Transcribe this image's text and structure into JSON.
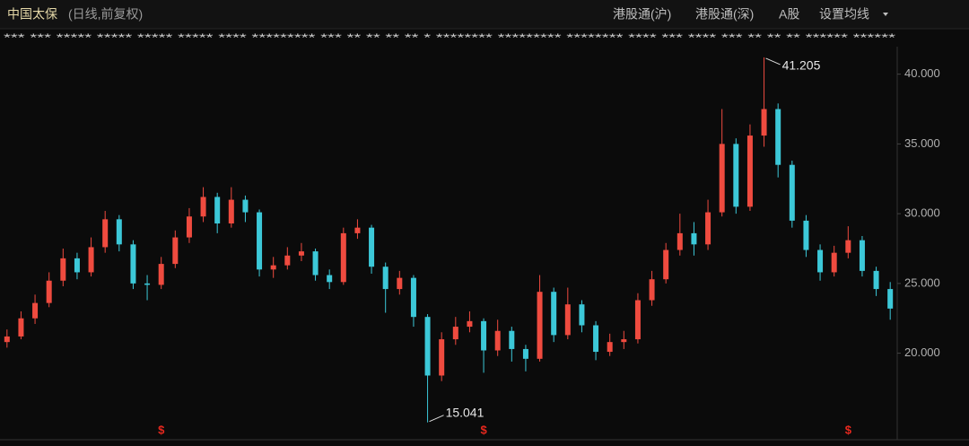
{
  "chart_data": {
    "type": "candlestick",
    "title": "中国太保",
    "subtitle": "(日线,前复权)",
    "tabs": [
      "港股通(沪)",
      "港股通(深)",
      "A股",
      "设置均线"
    ],
    "legend_masked": "*** *** ***** ***** ***** ***** **** ********* *** ** ** ** ** * ******** ********* ******** **** *** **** *** ** ** ** ****** ******",
    "open": [
      20.8,
      21.2,
      22.5,
      23.6,
      25.2,
      26.8,
      25.8,
      27.6,
      29.6,
      27.8,
      25.0,
      24.9,
      26.4,
      28.3,
      29.8,
      31.2,
      29.3,
      31.0,
      30.1,
      26.0,
      26.3,
      27.0,
      27.3,
      25.6,
      25.1,
      28.6,
      29.0,
      26.2,
      24.6,
      25.4,
      22.6,
      18.4,
      21.0,
      21.9,
      22.3,
      20.2,
      21.6,
      20.3,
      19.6,
      24.4,
      21.3,
      23.5,
      22.0,
      20.1,
      20.8,
      21.0,
      23.8,
      25.3,
      27.4,
      28.6,
      27.8,
      30.1,
      35.0,
      30.5,
      35.6,
      37.5,
      33.5,
      29.5,
      27.4,
      25.8,
      27.2,
      28.1,
      25.9,
      24.6
    ],
    "close": [
      21.2,
      22.5,
      23.6,
      25.2,
      26.8,
      25.8,
      27.6,
      29.6,
      27.8,
      25.0,
      24.9,
      26.4,
      28.3,
      29.8,
      31.2,
      29.3,
      31.0,
      30.1,
      26.0,
      26.3,
      27.0,
      27.3,
      25.6,
      25.1,
      28.6,
      29.0,
      26.2,
      24.6,
      25.4,
      22.6,
      18.4,
      21.0,
      21.9,
      22.3,
      20.2,
      21.6,
      20.3,
      19.6,
      24.4,
      21.3,
      23.5,
      22.0,
      20.1,
      20.8,
      21.0,
      23.8,
      25.3,
      27.4,
      28.6,
      27.8,
      30.1,
      35.0,
      30.5,
      35.6,
      37.5,
      33.5,
      29.5,
      27.4,
      25.8,
      27.2,
      28.1,
      25.9,
      24.6,
      23.2
    ],
    "high": [
      21.7,
      23.0,
      24.2,
      25.8,
      27.5,
      27.2,
      28.3,
      30.2,
      29.9,
      28.1,
      25.6,
      26.9,
      28.8,
      30.4,
      31.9,
      31.5,
      31.9,
      31.3,
      30.3,
      26.9,
      27.6,
      27.9,
      27.5,
      26.0,
      29.0,
      29.6,
      29.2,
      26.5,
      25.9,
      25.6,
      22.8,
      21.5,
      22.6,
      23.0,
      22.5,
      22.4,
      21.9,
      20.6,
      25.6,
      24.7,
      24.7,
      23.8,
      22.3,
      21.4,
      21.6,
      24.3,
      25.9,
      27.9,
      30.0,
      29.4,
      31.0,
      37.5,
      35.4,
      36.4,
      41.205,
      37.9,
      33.8,
      29.9,
      27.8,
      27.7,
      29.1,
      28.4,
      26.2,
      25.1
    ],
    "low": [
      20.4,
      21.0,
      22.1,
      23.3,
      24.8,
      25.3,
      25.5,
      27.2,
      27.3,
      24.6,
      23.8,
      24.6,
      26.1,
      27.9,
      29.4,
      28.6,
      29.0,
      29.4,
      25.5,
      25.4,
      26.0,
      26.6,
      25.2,
      24.6,
      24.9,
      28.2,
      25.7,
      22.9,
      24.2,
      21.9,
      15.041,
      18.0,
      20.6,
      21.5,
      18.6,
      19.8,
      19.4,
      18.7,
      19.4,
      20.8,
      21.0,
      21.5,
      19.5,
      19.8,
      20.3,
      20.7,
      23.4,
      25.0,
      27.0,
      27.0,
      27.4,
      29.8,
      30.0,
      30.2,
      34.8,
      32.6,
      29.0,
      26.9,
      25.2,
      25.5,
      26.8,
      25.5,
      24.1,
      22.4
    ],
    "up_color": "#ef4b3f",
    "down_color": "#3cc8d8",
    "annotations": [
      "41.205",
      "15.041"
    ],
    "dividend_markers": {
      "label": "$",
      "color": "#e8281e",
      "x": [
        11,
        34,
        60
      ]
    },
    "ylim": [
      13.8,
      42.1
    ],
    "yticks": [
      {
        "value": 20,
        "label": "20.000"
      },
      {
        "value": 25,
        "label": "25.000"
      },
      {
        "value": 30,
        "label": "30.000"
      },
      {
        "value": 35,
        "label": "35.000"
      },
      {
        "value": 40,
        "label": "40.000"
      }
    ]
  }
}
